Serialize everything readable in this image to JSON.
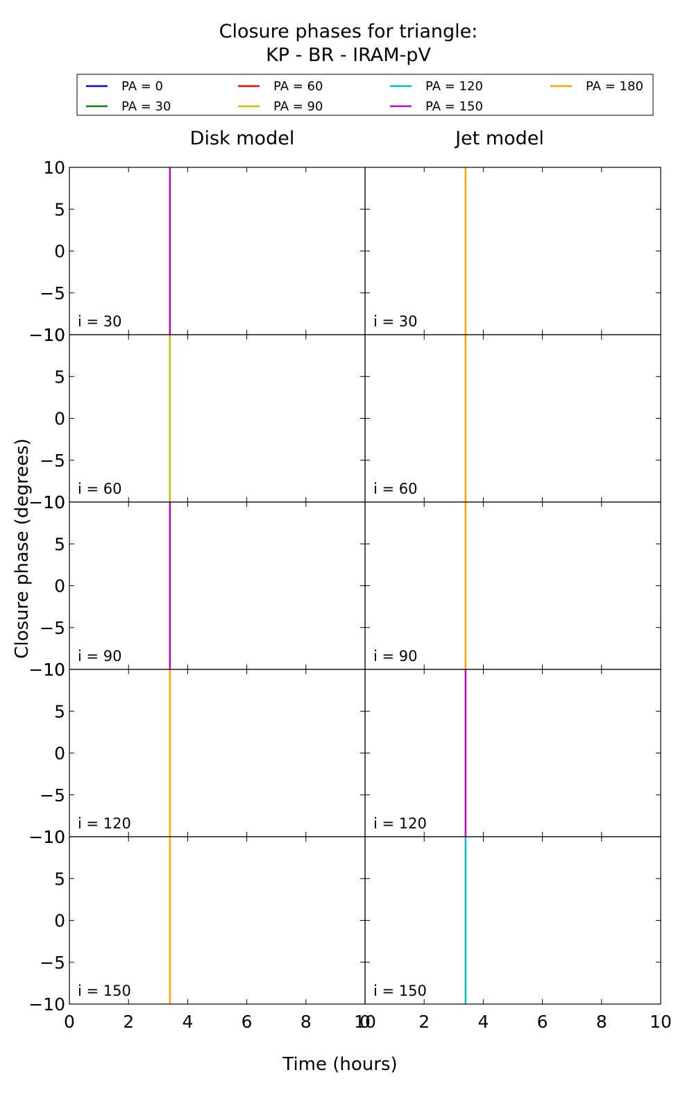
{
  "figure": {
    "title_line1": "Closure phases for triangle:",
    "title_line2": "KP - BR - IRAM-pV",
    "xlabel": "Time (hours)",
    "ylabel": "Closure phase (degrees)"
  },
  "legend": [
    {
      "label": "PA = 0",
      "color": "#0000ff"
    },
    {
      "label": "PA = 30",
      "color": "#008000"
    },
    {
      "label": "PA = 60",
      "color": "#ff0000"
    },
    {
      "label": "PA = 90",
      "color": "#bfbf00"
    },
    {
      "label": "PA = 120",
      "color": "#00bfbf"
    },
    {
      "label": "PA = 150",
      "color": "#bf00bf"
    },
    {
      "label": "PA = 180",
      "color": "#ffa500"
    }
  ],
  "columns": [
    "Disk model",
    "Jet model"
  ],
  "chart_data": {
    "type": "line",
    "xlim": [
      0,
      10
    ],
    "ylim": [
      -10,
      10
    ],
    "xticks": [
      0,
      2,
      4,
      6,
      8,
      10
    ],
    "yticks": [
      10,
      5,
      0,
      -5,
      -10
    ],
    "xtick_labels": [
      "0",
      "2",
      "4",
      "6",
      "8",
      "10"
    ],
    "ytick_labels": [
      "10",
      "5",
      "0",
      "−5",
      "−10"
    ],
    "grid": false,
    "legend_position": "top",
    "panels": [
      {
        "model": "Disk model",
        "label": "i = 30",
        "x": 3.4,
        "color": "#bf00bf"
      },
      {
        "model": "Jet model",
        "label": "i = 30",
        "x": 3.4,
        "color": "#ffa500"
      },
      {
        "model": "Disk model",
        "label": "i = 60",
        "x": 3.4,
        "color": "#bfbf00"
      },
      {
        "model": "Jet model",
        "label": "i = 60",
        "x": 3.4,
        "color": "#ffa500"
      },
      {
        "model": "Disk model",
        "label": "i = 90",
        "x": 3.4,
        "color": "#bf00bf"
      },
      {
        "model": "Jet model",
        "label": "i = 90",
        "x": 3.4,
        "color": "#ffa500"
      },
      {
        "model": "Disk model",
        "label": "i = 120",
        "x": 3.4,
        "color": "#ffa500"
      },
      {
        "model": "Jet model",
        "label": "i = 120",
        "x": 3.4,
        "color": "#bf00bf"
      },
      {
        "model": "Disk model",
        "label": "i = 150",
        "x": 3.4,
        "color": "#ffa500"
      },
      {
        "model": "Jet model",
        "label": "i = 150",
        "x": 3.4,
        "color": "#00bfbf"
      }
    ]
  }
}
